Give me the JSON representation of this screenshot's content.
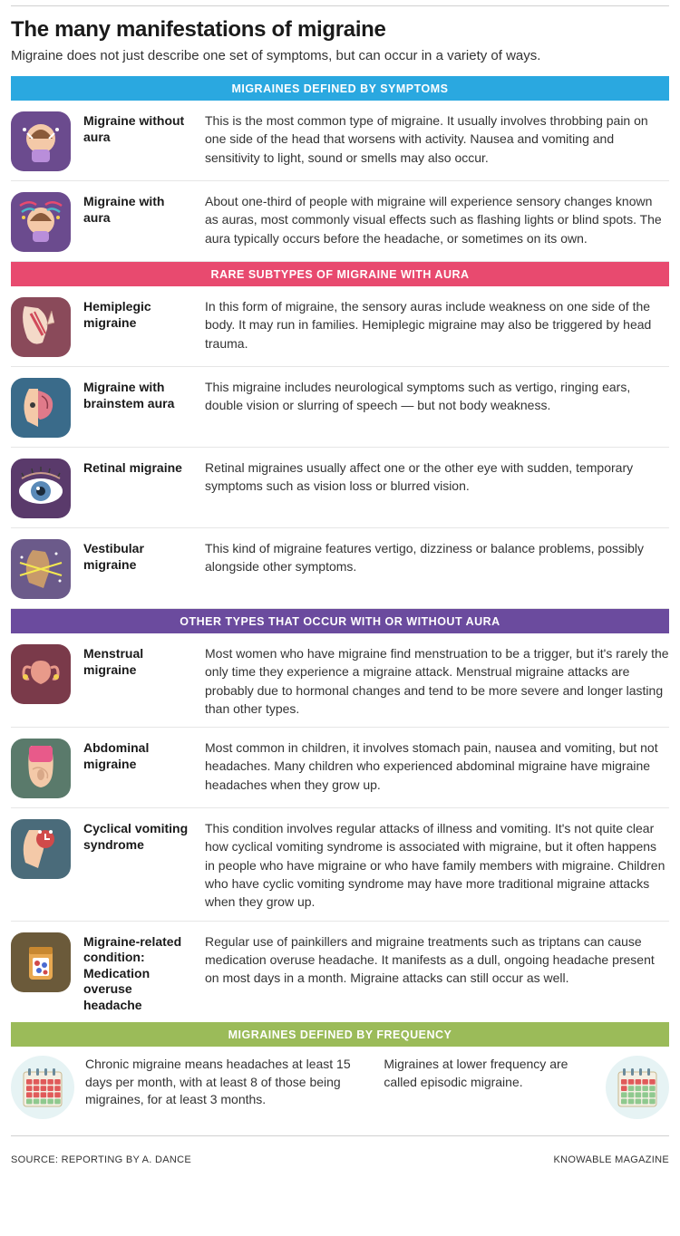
{
  "title": "The many manifestations of migraine",
  "subtitle": "Migraine does not just describe one set of symptoms, but can occur in a variety of ways.",
  "sections": [
    {
      "header": "MIGRAINES DEFINED BY SYMPTOMS",
      "header_color": "#2aa8e0",
      "items": [
        {
          "icon": "head-pain",
          "icon_bg": "#6b4b8e",
          "label": "Migraine without aura",
          "desc": "This is the most common type of migraine. It usually involves throbbing pain on one side of the head that worsens with activity. Nausea and vomiting and sensitivity to light, sound or smells may also occur."
        },
        {
          "icon": "head-aura",
          "icon_bg": "#6b4b8e",
          "label": "Migraine with aura",
          "desc": "About one-third of people with migraine will experience sensory changes known as auras, most commonly visual effects such as flashing lights or blind spots. The aura typically occurs before the headache, or sometimes on its own."
        }
      ]
    },
    {
      "header": "RARE SUBTYPES OF MIGRAINE WITH AURA",
      "header_color": "#e84a6f",
      "items": [
        {
          "icon": "arm-weak",
          "icon_bg": "#8a4a5a",
          "label": "Hemiplegic migraine",
          "desc": "In this form of migraine, the sensory auras include weakness on one side of the body. It may run in families. Hemiplegic migraine may also be triggered by head trauma."
        },
        {
          "icon": "brainstem",
          "icon_bg": "#3a6b8a",
          "label": "Migraine with brainstem aura",
          "desc": "This migraine includes neurological symptoms such as vertigo, ringing ears, double vision or slurring of speech — but not body weakness."
        },
        {
          "icon": "eye",
          "icon_bg": "#5a3a6b",
          "label": "Retinal migraine",
          "desc": "Retinal migraines usually affect one or the other eye with sudden, temporary symptoms such as vision loss or blurred vision."
        },
        {
          "icon": "vestibular",
          "icon_bg": "#6b5a8a",
          "label": "Vestibular migraine",
          "desc": "This kind of migraine features vertigo, dizziness or balance problems, possibly alongside other symptoms."
        }
      ]
    },
    {
      "header": "OTHER TYPES THAT OCCUR WITH OR WITHOUT AURA",
      "header_color": "#6b4b9e",
      "items": [
        {
          "icon": "uterus",
          "icon_bg": "#7a3a4a",
          "label": "Menstrual migraine",
          "desc": "Most women who have migraine find menstruation to be a trigger, but it's rarely the only time they experience a migraine attack. Menstrual migraine attacks are probably due to hormonal changes and tend to be more severe and longer lasting than other types."
        },
        {
          "icon": "abdomen",
          "icon_bg": "#5a7a6b",
          "label": "Abdominal migraine",
          "desc": "Most common in children, it involves stomach pain, nausea and vomiting, but not headaches. Many children who experienced abdominal migraine have migraine headaches when they grow up."
        },
        {
          "icon": "cyclic",
          "icon_bg": "#4a6b7a",
          "label": "Cyclical vomiting syndrome",
          "desc": "This condition involves regular attacks of illness and vomiting. It's not quite clear how cyclical vomiting syndrome is associated with migraine, but it often happens in people who have migraine or who have family members with migraine. Children who have cyclic vomiting syndrome may have more traditional migraine attacks when they grow up."
        },
        {
          "icon": "pills",
          "icon_bg": "#6b5a3a",
          "label": "Migraine-related condition: Medication overuse headache",
          "desc": "Regular use of painkillers and migraine treatments such as triptans can cause medication overuse headache. It manifests as a dull, ongoing headache present on most days in a month. Migraine attacks can still occur as well."
        }
      ]
    }
  ],
  "frequency": {
    "header": "MIGRAINES DEFINED BY FREQUENCY",
    "header_color": "#9bbb59",
    "chronic": {
      "text": "Chronic migraine means headaches at least 15 days per month, with at least 8 of those being migraines, for at least 3 months.",
      "cal_colors": {
        "red": 15,
        "green": 5
      }
    },
    "episodic": {
      "text": "Migraines at lower frequency are called episodic migraine.",
      "cal_colors": {
        "red": 6,
        "green": 14
      }
    }
  },
  "footer": {
    "source": "SOURCE: REPORTING BY A. DANCE",
    "credit": "KNOWABLE MAGAZINE"
  },
  "colors": {
    "rule": "#d0d0d0",
    "cal_red": "#e05a5a",
    "cal_green": "#8fc98f",
    "cal_bg": "#f4efe3",
    "cal_ring": "#6b8a9a"
  }
}
